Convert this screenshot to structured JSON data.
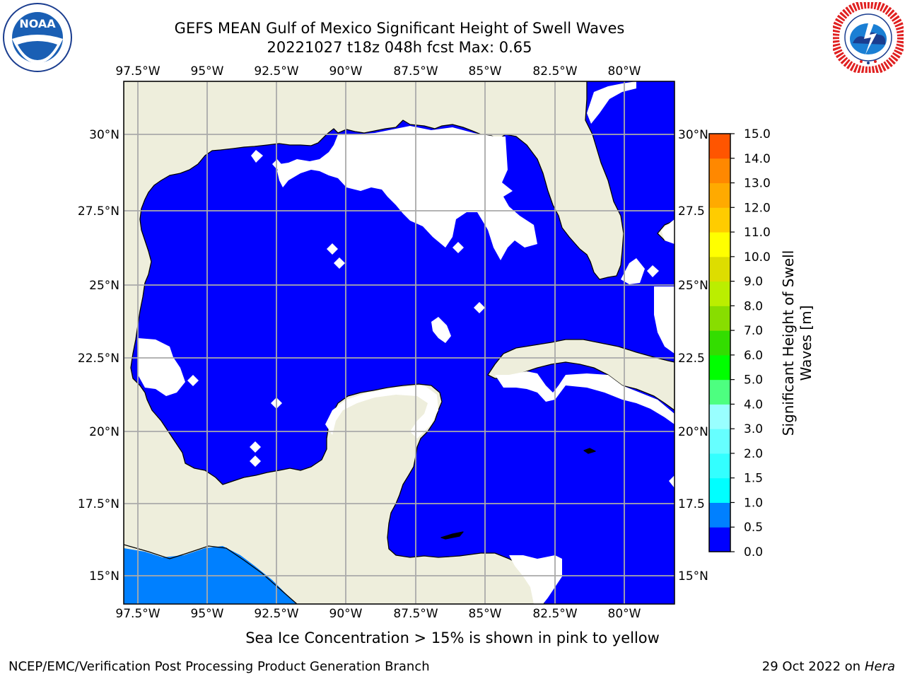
{
  "header": {
    "title_line1": "GEFS MEAN Gulf of Mexico Significant Height of Swell Waves",
    "title_line2": "20221027 t18z 048h fcst   Max: 0.65"
  },
  "logos": {
    "noaa_text": "NOAA",
    "noaa_ring": "NATIONAL OCEANIC AND ATMOSPHERIC ADMINISTRATION · U.S. DEPARTMENT OF COMMERCE",
    "nws_ring": "NATIONAL WEATHER SERVICE"
  },
  "map": {
    "lon_labels": [
      "97.5°W",
      "95°W",
      "92.5°W",
      "90°W",
      "87.5°W",
      "85°W",
      "82.5°W",
      "80°W"
    ],
    "lat_labels_left": [
      "30°N",
      "27.5°N",
      "25°N",
      "22.5°N",
      "20°N",
      "17.5°N",
      "15°N"
    ],
    "lat_labels_right": [
      "30°N",
      "27.5",
      "25°N",
      "22.5",
      "20°N",
      "17.5",
      "15°N"
    ],
    "land_color": "#eeeedc",
    "ocean_color_0_0_5": "#0000ff",
    "ocean_color_0_5_1": "#0080ff",
    "no_data_color": "#ffffff"
  },
  "colorbar": {
    "title_line1": "Significant Height of Swell",
    "title_line2": "Waves [m]",
    "tick_labels": [
      "0.0",
      "0.5",
      "1.0",
      "1.5",
      "2.0",
      "3.0",
      "4.0",
      "5.0",
      "6.0",
      "7.0",
      "8.0",
      "9.0",
      "10.0",
      "11.0",
      "12.0",
      "13.0",
      "14.0",
      "15.0"
    ],
    "colors": [
      "#0000ff",
      "#0080ff",
      "#00ffff",
      "#33ffff",
      "#66ffff",
      "#99ffff",
      "#4dff80",
      "#00ff00",
      "#33dd00",
      "#88dd00",
      "#bbee00",
      "#dddd00",
      "#ffff00",
      "#ffcc00",
      "#ffaa00",
      "#ff8800",
      "#ff5500",
      "#ff2200",
      "#ff0000"
    ]
  },
  "caption": "Sea Ice Concentration > 15% is shown in pink to yellow",
  "footer": {
    "left": "NCEP/EMC/Verification Post Processing Product Generation Branch",
    "right_prefix": "29 Oct 2022 on ",
    "right_host": "Hera"
  }
}
